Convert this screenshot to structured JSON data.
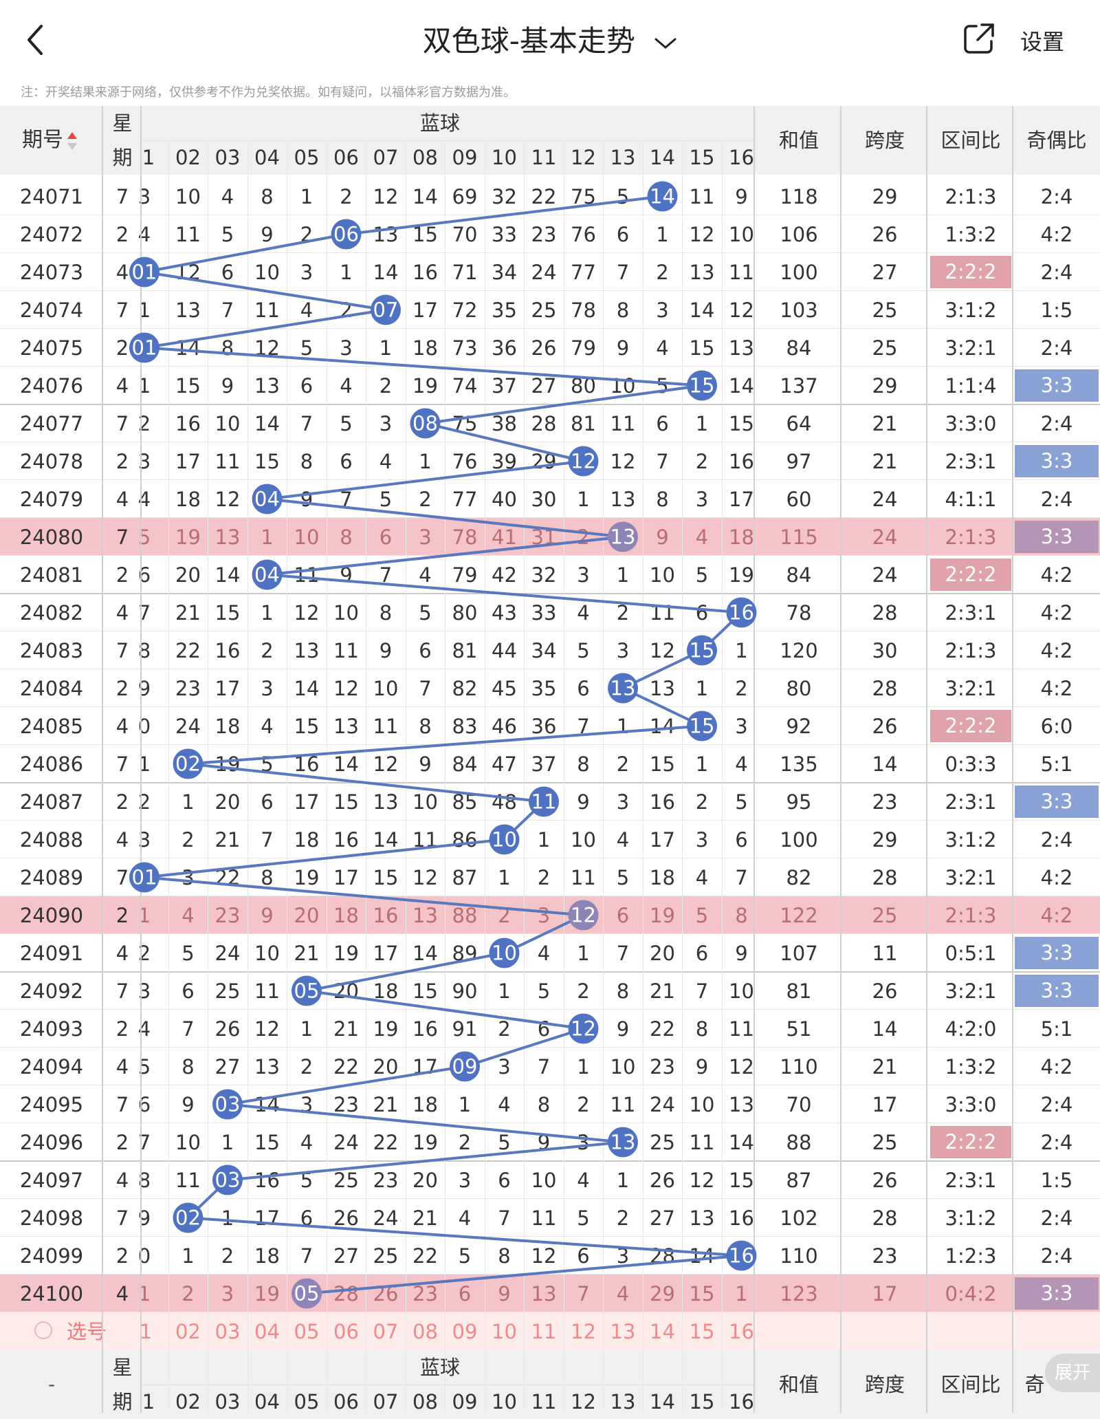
{
  "nav": {
    "title": "双色球-基本走势",
    "settings_label": "设置"
  },
  "notice": "注：开奖结果来源于网络，仅供参考不作为兑奖依据。如有疑问，以福体彩官方数据为准。",
  "header": {
    "period_label": "期号",
    "week_label_1": "星",
    "week_label_2": "期",
    "blue_label": "蓝球",
    "sum_label": "和值",
    "span_label": "跨度",
    "zone_label": "区间比",
    "odd_even_label": "奇偶比",
    "odd_even_label_cut": "奇"
  },
  "blue_numbers": [
    "1",
    "02",
    "03",
    "04",
    "05",
    "06",
    "07",
    "08",
    "09",
    "10",
    "11",
    "12",
    "13",
    "14",
    "15",
    "16"
  ],
  "footer": {
    "select_label": "选号",
    "period_placeholder": "-",
    "expand_label": "展开"
  },
  "colors": {
    "ball": "#4f73c2",
    "line": "#5878bf",
    "highlight_row": "#f4c4c8",
    "highlight_pink": "#dfa3a9",
    "highlight_blue": "#8aa1d6",
    "highlight_purple": "#b595b5",
    "select_row": "#fdecea"
  },
  "rows": [
    {
      "p": "24071",
      "w": "7",
      "c": [
        "3",
        "10",
        "4",
        "8",
        "1",
        "2",
        "12",
        "14",
        "69",
        "32",
        "22",
        "75",
        "5",
        "14",
        "11",
        "9"
      ],
      "ball": 14,
      "sum": "118",
      "span": "29",
      "zone": "2:1:3",
      "oe": "2:4",
      "zh": "",
      "oh": ""
    },
    {
      "p": "24072",
      "w": "2",
      "c": [
        "4",
        "11",
        "5",
        "9",
        "2",
        "06",
        "13",
        "15",
        "70",
        "33",
        "23",
        "76",
        "6",
        "1",
        "12",
        "10"
      ],
      "ball": 6,
      "sum": "106",
      "span": "26",
      "zone": "1:3:2",
      "oe": "4:2",
      "zh": "",
      "oh": ""
    },
    {
      "p": "24073",
      "w": "4",
      "c": [
        "01",
        "12",
        "6",
        "10",
        "3",
        "1",
        "14",
        "16",
        "71",
        "34",
        "24",
        "77",
        "7",
        "2",
        "13",
        "11"
      ],
      "ball": 1,
      "sum": "100",
      "span": "27",
      "zone": "2:2:2",
      "oe": "2:4",
      "zh": "pink",
      "oh": ""
    },
    {
      "p": "24074",
      "w": "7",
      "c": [
        "1",
        "13",
        "7",
        "11",
        "4",
        "2",
        "07",
        "17",
        "72",
        "35",
        "25",
        "78",
        "8",
        "3",
        "14",
        "12"
      ],
      "ball": 7,
      "sum": "103",
      "span": "25",
      "zone": "3:1:2",
      "oe": "1:5",
      "zh": "",
      "oh": ""
    },
    {
      "p": "24075",
      "w": "2",
      "c": [
        "01",
        "14",
        "8",
        "12",
        "5",
        "3",
        "1",
        "18",
        "73",
        "36",
        "26",
        "79",
        "9",
        "4",
        "15",
        "13"
      ],
      "ball": 1,
      "sum": "84",
      "span": "25",
      "zone": "3:2:1",
      "oe": "2:4",
      "zh": "",
      "oh": ""
    },
    {
      "p": "24076",
      "w": "4",
      "c": [
        "1",
        "15",
        "9",
        "13",
        "6",
        "4",
        "2",
        "19",
        "74",
        "37",
        "27",
        "80",
        "10",
        "5",
        "15",
        "14"
      ],
      "ball": 15,
      "sum": "137",
      "span": "29",
      "zone": "1:1:4",
      "oe": "3:3",
      "zh": "",
      "oh": "blue"
    },
    {
      "p": "24077",
      "w": "7",
      "c": [
        "2",
        "16",
        "10",
        "14",
        "7",
        "5",
        "3",
        "08",
        "75",
        "38",
        "28",
        "81",
        "11",
        "6",
        "1",
        "15"
      ],
      "ball": 8,
      "sum": "64",
      "span": "21",
      "zone": "3:3:0",
      "oe": "2:4",
      "zh": "",
      "oh": ""
    },
    {
      "p": "24078",
      "w": "2",
      "c": [
        "3",
        "17",
        "11",
        "15",
        "8",
        "6",
        "4",
        "1",
        "76",
        "39",
        "29",
        "12",
        "12",
        "7",
        "2",
        "16"
      ],
      "ball": 12,
      "sum": "97",
      "span": "21",
      "zone": "2:3:1",
      "oe": "3:3",
      "zh": "",
      "oh": "blue"
    },
    {
      "p": "24079",
      "w": "4",
      "c": [
        "4",
        "18",
        "12",
        "04",
        "9",
        "7",
        "5",
        "2",
        "77",
        "40",
        "30",
        "1",
        "13",
        "8",
        "3",
        "17"
      ],
      "ball": 4,
      "sum": "60",
      "span": "24",
      "zone": "4:1:1",
      "oe": "2:4",
      "zh": "",
      "oh": ""
    },
    {
      "p": "24080",
      "w": "7",
      "c": [
        "5",
        "19",
        "13",
        "1",
        "10",
        "8",
        "6",
        "3",
        "78",
        "41",
        "31",
        "2",
        "13",
        "9",
        "4",
        "18"
      ],
      "ball": 13,
      "sum": "115",
      "span": "24",
      "zone": "2:1:3",
      "oe": "3:3",
      "zh": "",
      "oh": "purple",
      "hl": true
    },
    {
      "p": "24081",
      "w": "2",
      "c": [
        "6",
        "20",
        "14",
        "04",
        "11",
        "9",
        "7",
        "4",
        "79",
        "42",
        "32",
        "3",
        "1",
        "10",
        "5",
        "19"
      ],
      "ball": 4,
      "sum": "84",
      "span": "24",
      "zone": "2:2:2",
      "oe": "4:2",
      "zh": "pink",
      "oh": ""
    },
    {
      "p": "24082",
      "w": "4",
      "c": [
        "7",
        "21",
        "15",
        "1",
        "12",
        "10",
        "8",
        "5",
        "80",
        "43",
        "33",
        "4",
        "2",
        "11",
        "6",
        "16"
      ],
      "ball": 16,
      "sum": "78",
      "span": "28",
      "zone": "2:3:1",
      "oe": "4:2",
      "zh": "",
      "oh": ""
    },
    {
      "p": "24083",
      "w": "7",
      "c": [
        "8",
        "22",
        "16",
        "2",
        "13",
        "11",
        "9",
        "6",
        "81",
        "44",
        "34",
        "5",
        "3",
        "12",
        "15",
        "1"
      ],
      "ball": 15,
      "sum": "120",
      "span": "30",
      "zone": "2:1:3",
      "oe": "4:2",
      "zh": "",
      "oh": ""
    },
    {
      "p": "24084",
      "w": "2",
      "c": [
        "9",
        "23",
        "17",
        "3",
        "14",
        "12",
        "10",
        "7",
        "82",
        "45",
        "35",
        "6",
        "13",
        "13",
        "1",
        "2"
      ],
      "ball": 13,
      "sum": "80",
      "span": "28",
      "zone": "3:2:1",
      "oe": "4:2",
      "zh": "",
      "oh": ""
    },
    {
      "p": "24085",
      "w": "4",
      "c": [
        "10",
        "24",
        "18",
        "4",
        "15",
        "13",
        "11",
        "8",
        "83",
        "46",
        "36",
        "7",
        "1",
        "14",
        "15",
        "3"
      ],
      "ball": 15,
      "sum": "92",
      "span": "26",
      "zone": "2:2:2",
      "oe": "6:0",
      "zh": "pink",
      "oh": ""
    },
    {
      "p": "24086",
      "w": "7",
      "c": [
        "1",
        "02",
        "19",
        "5",
        "16",
        "14",
        "12",
        "9",
        "84",
        "47",
        "37",
        "8",
        "2",
        "15",
        "1",
        "4"
      ],
      "ball": 2,
      "sum": "135",
      "span": "14",
      "zone": "0:3:3",
      "oe": "5:1",
      "zh": "",
      "oh": ""
    },
    {
      "p": "24087",
      "w": "2",
      "c": [
        "2",
        "1",
        "20",
        "6",
        "17",
        "15",
        "13",
        "10",
        "85",
        "48",
        "11",
        "9",
        "3",
        "16",
        "2",
        "5"
      ],
      "ball": 11,
      "sum": "95",
      "span": "23",
      "zone": "2:3:1",
      "oe": "3:3",
      "zh": "",
      "oh": "blue"
    },
    {
      "p": "24088",
      "w": "4",
      "c": [
        "3",
        "2",
        "21",
        "7",
        "18",
        "16",
        "14",
        "11",
        "86",
        "10",
        "1",
        "10",
        "4",
        "17",
        "3",
        "6"
      ],
      "ball": 10,
      "sum": "100",
      "span": "29",
      "zone": "3:1:2",
      "oe": "2:4",
      "zh": "",
      "oh": ""
    },
    {
      "p": "24089",
      "w": "7",
      "c": [
        "01",
        "3",
        "22",
        "8",
        "19",
        "17",
        "15",
        "12",
        "87",
        "1",
        "2",
        "11",
        "5",
        "18",
        "4",
        "7"
      ],
      "ball": 1,
      "sum": "82",
      "span": "28",
      "zone": "3:2:1",
      "oe": "4:2",
      "zh": "",
      "oh": ""
    },
    {
      "p": "24090",
      "w": "2",
      "c": [
        "1",
        "4",
        "23",
        "9",
        "20",
        "18",
        "16",
        "13",
        "88",
        "2",
        "3",
        "12",
        "6",
        "19",
        "5",
        "8"
      ],
      "ball": 12,
      "sum": "122",
      "span": "25",
      "zone": "2:1:3",
      "oe": "4:2",
      "zh": "",
      "oh": "",
      "hl": true
    },
    {
      "p": "24091",
      "w": "4",
      "c": [
        "2",
        "5",
        "24",
        "10",
        "21",
        "19",
        "17",
        "14",
        "89",
        "10",
        "4",
        "1",
        "7",
        "20",
        "6",
        "9"
      ],
      "ball": 10,
      "sum": "107",
      "span": "11",
      "zone": "0:5:1",
      "oe": "3:3",
      "zh": "",
      "oh": "blue"
    },
    {
      "p": "24092",
      "w": "7",
      "c": [
        "3",
        "6",
        "25",
        "11",
        "05",
        "20",
        "18",
        "15",
        "90",
        "1",
        "5",
        "2",
        "8",
        "21",
        "7",
        "10"
      ],
      "ball": 5,
      "sum": "81",
      "span": "26",
      "zone": "3:2:1",
      "oe": "3:3",
      "zh": "",
      "oh": "blue"
    },
    {
      "p": "24093",
      "w": "2",
      "c": [
        "4",
        "7",
        "26",
        "12",
        "1",
        "21",
        "19",
        "16",
        "91",
        "2",
        "6",
        "12",
        "9",
        "22",
        "8",
        "11"
      ],
      "ball": 12,
      "sum": "51",
      "span": "14",
      "zone": "4:2:0",
      "oe": "5:1",
      "zh": "",
      "oh": ""
    },
    {
      "p": "24094",
      "w": "4",
      "c": [
        "5",
        "8",
        "27",
        "13",
        "2",
        "22",
        "20",
        "17",
        "09",
        "3",
        "7",
        "1",
        "10",
        "23",
        "9",
        "12"
      ],
      "ball": 9,
      "sum": "110",
      "span": "21",
      "zone": "1:3:2",
      "oe": "4:2",
      "zh": "",
      "oh": ""
    },
    {
      "p": "24095",
      "w": "7",
      "c": [
        "6",
        "9",
        "03",
        "14",
        "3",
        "23",
        "21",
        "18",
        "1",
        "4",
        "8",
        "2",
        "11",
        "24",
        "10",
        "13"
      ],
      "ball": 3,
      "sum": "70",
      "span": "17",
      "zone": "3:3:0",
      "oe": "2:4",
      "zh": "",
      "oh": ""
    },
    {
      "p": "24096",
      "w": "2",
      "c": [
        "7",
        "10",
        "1",
        "15",
        "4",
        "24",
        "22",
        "19",
        "2",
        "5",
        "9",
        "3",
        "13",
        "25",
        "11",
        "14"
      ],
      "ball": 13,
      "sum": "88",
      "span": "25",
      "zone": "2:2:2",
      "oe": "2:4",
      "zh": "pink",
      "oh": ""
    },
    {
      "p": "24097",
      "w": "4",
      "c": [
        "8",
        "11",
        "03",
        "16",
        "5",
        "25",
        "23",
        "20",
        "3",
        "6",
        "10",
        "4",
        "1",
        "26",
        "12",
        "15"
      ],
      "ball": 3,
      "sum": "87",
      "span": "26",
      "zone": "2:3:1",
      "oe": "1:5",
      "zh": "",
      "oh": ""
    },
    {
      "p": "24098",
      "w": "7",
      "c": [
        "9",
        "02",
        "1",
        "17",
        "6",
        "26",
        "24",
        "21",
        "4",
        "7",
        "11",
        "5",
        "2",
        "27",
        "13",
        "16"
      ],
      "ball": 2,
      "sum": "102",
      "span": "28",
      "zone": "3:1:2",
      "oe": "2:4",
      "zh": "",
      "oh": ""
    },
    {
      "p": "24099",
      "w": "2",
      "c": [
        "10",
        "1",
        "2",
        "18",
        "7",
        "27",
        "25",
        "22",
        "5",
        "8",
        "12",
        "6",
        "3",
        "28",
        "14",
        "16"
      ],
      "ball": 16,
      "sum": "110",
      "span": "23",
      "zone": "1:2:3",
      "oe": "2:4",
      "zh": "",
      "oh": ""
    },
    {
      "p": "24100",
      "w": "4",
      "c": [
        "1",
        "2",
        "3",
        "19",
        "05",
        "28",
        "26",
        "23",
        "6",
        "9",
        "13",
        "7",
        "4",
        "29",
        "15",
        "1"
      ],
      "ball": 5,
      "sum": "123",
      "span": "17",
      "zone": "0:4:2",
      "oe": "3:3",
      "zh": "",
      "oh": "purple",
      "hl": true
    }
  ]
}
